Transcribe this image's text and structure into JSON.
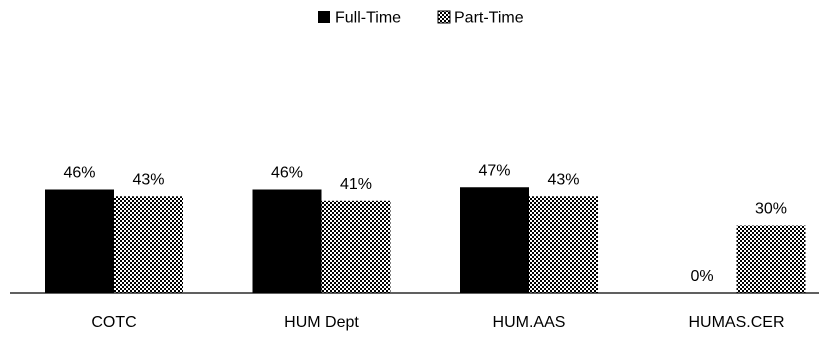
{
  "chart_data": {
    "type": "bar",
    "title": "",
    "xlabel": "",
    "ylabel": "",
    "ylim": [
      0,
      100
    ],
    "grid": false,
    "legend_position": "top-center",
    "categories": [
      "COTC",
      "HUM Dept",
      "HUM.AAS",
      "HUMAS.CER"
    ],
    "series": [
      {
        "name": "Full-Time",
        "values": [
          46,
          46,
          47,
          0
        ],
        "labels": [
          "46%",
          "46%",
          "47%",
          "0%"
        ],
        "fill": "solid",
        "color": "#000000"
      },
      {
        "name": "Part-Time",
        "values": [
          43,
          41,
          43,
          30
        ],
        "labels": [
          "43%",
          "41%",
          "43%",
          "30%"
        ],
        "fill": "checkered",
        "color": "#000000"
      }
    ]
  }
}
